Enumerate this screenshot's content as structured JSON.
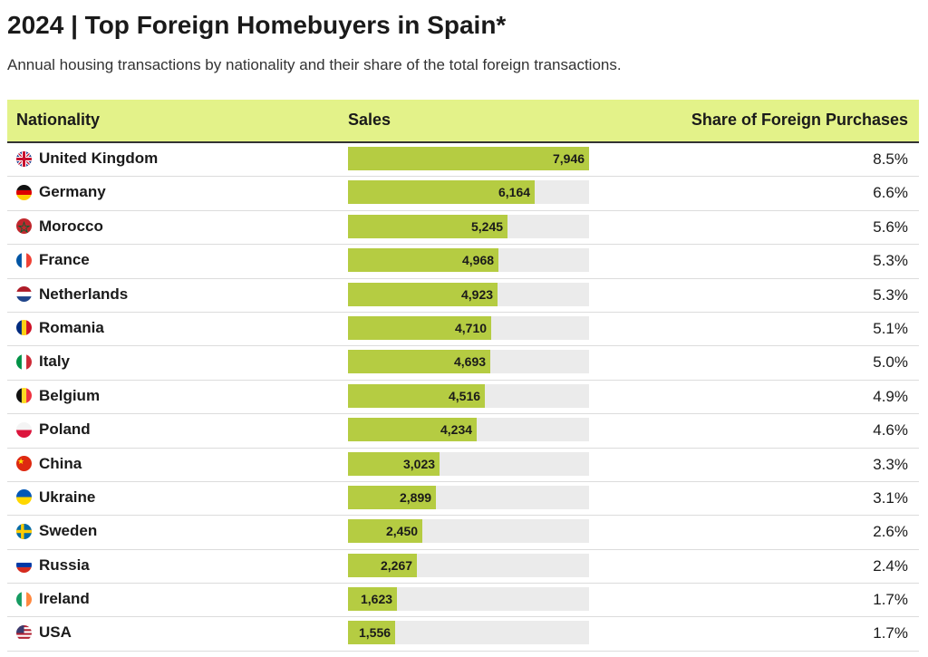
{
  "title": "2024 | Top Foreign Homebuyers in Spain*",
  "subtitle": "Annual housing transactions by nationality and their share of the total foreign transactions.",
  "headers": {
    "nationality": "Nationality",
    "sales": "Sales",
    "share": "Share of Foreign Purchases"
  },
  "colors": {
    "header_bg": "#e3f289",
    "bar": "#b5cc42",
    "track": "#ebebeb"
  },
  "chart_data": {
    "type": "table",
    "title": "2024 | Top Foreign Homebuyers in Spain*",
    "columns": [
      "Nationality",
      "Sales",
      "Share of Foreign Purchases"
    ],
    "bar_max": 7946,
    "rows": [
      {
        "nationality": "United Kingdom",
        "sales": 7946,
        "sales_label": "7,946",
        "share": "8.5%",
        "flag": "uk-flag-icon"
      },
      {
        "nationality": "Germany",
        "sales": 6164,
        "sales_label": "6,164",
        "share": "6.6%",
        "flag": "germany-flag-icon"
      },
      {
        "nationality": "Morocco",
        "sales": 5245,
        "sales_label": "5,245",
        "share": "5.6%",
        "flag": "morocco-flag-icon"
      },
      {
        "nationality": "France",
        "sales": 4968,
        "sales_label": "4,968",
        "share": "5.3%",
        "flag": "france-flag-icon"
      },
      {
        "nationality": "Netherlands",
        "sales": 4923,
        "sales_label": "4,923",
        "share": "5.3%",
        "flag": "netherlands-flag-icon"
      },
      {
        "nationality": "Romania",
        "sales": 4710,
        "sales_label": "4,710",
        "share": "5.1%",
        "flag": "romania-flag-icon"
      },
      {
        "nationality": "Italy",
        "sales": 4693,
        "sales_label": "4,693",
        "share": "5.0%",
        "flag": "italy-flag-icon"
      },
      {
        "nationality": "Belgium",
        "sales": 4516,
        "sales_label": "4,516",
        "share": "4.9%",
        "flag": "belgium-flag-icon"
      },
      {
        "nationality": "Poland",
        "sales": 4234,
        "sales_label": "4,234",
        "share": "4.6%",
        "flag": "poland-flag-icon"
      },
      {
        "nationality": "China",
        "sales": 3023,
        "sales_label": "3,023",
        "share": "3.3%",
        "flag": "china-flag-icon"
      },
      {
        "nationality": "Ukraine",
        "sales": 2899,
        "sales_label": "2,899",
        "share": "3.1%",
        "flag": "ukraine-flag-icon"
      },
      {
        "nationality": "Sweden",
        "sales": 2450,
        "sales_label": "2,450",
        "share": "2.6%",
        "flag": "sweden-flag-icon"
      },
      {
        "nationality": "Russia",
        "sales": 2267,
        "sales_label": "2,267",
        "share": "2.4%",
        "flag": "russia-flag-icon"
      },
      {
        "nationality": "Ireland",
        "sales": 1623,
        "sales_label": "1,623",
        "share": "1.7%",
        "flag": "ireland-flag-icon"
      },
      {
        "nationality": "USA",
        "sales": 1556,
        "sales_label": "1,556",
        "share": "1.7%",
        "flag": "usa-flag-icon"
      }
    ]
  }
}
